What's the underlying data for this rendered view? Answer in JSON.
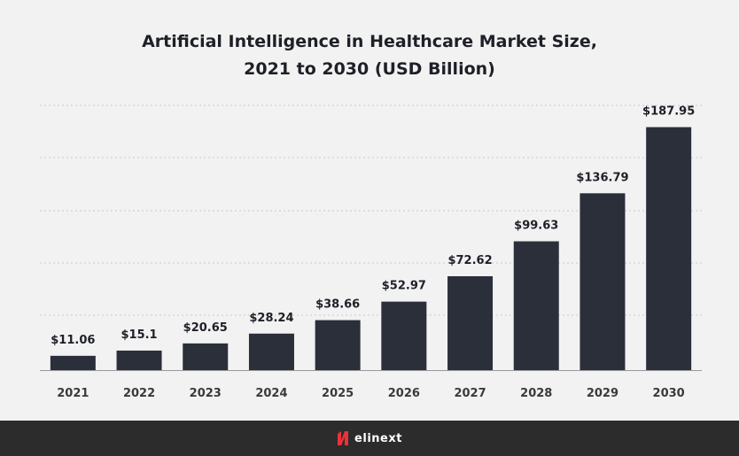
{
  "chart_data": {
    "type": "bar",
    "title_line1": "Artificial Intelligence in Healthcare Market Size,",
    "title_line2": "2021 to 2030 (USD Billion)",
    "categories": [
      "2021",
      "2022",
      "2023",
      "2024",
      "2025",
      "2026",
      "2027",
      "2028",
      "2029",
      "2030"
    ],
    "values": [
      11.06,
      15.1,
      20.65,
      28.24,
      38.66,
      52.97,
      72.62,
      99.63,
      136.79,
      187.95
    ],
    "value_labels": [
      "$11.06",
      "$15.1",
      "$20.65",
      "$28.24",
      "$38.66",
      "$52.97",
      "$72.62",
      "$99.63",
      "$136.79",
      "$187.95"
    ],
    "colors": {
      "bar": "#2b2f3a",
      "grid": "#c9c9c9",
      "axis": "#9a9a9a",
      "label": "#1e2028",
      "tick": "#3a3a3a"
    },
    "grid": true
  },
  "footer": {
    "logo_text": "elinext",
    "logo_color": "#e8333a"
  }
}
